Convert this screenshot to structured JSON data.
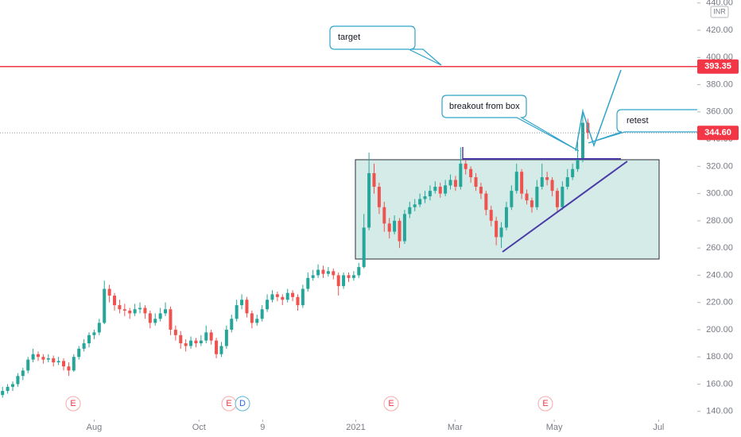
{
  "chart_data": {
    "type": "candlestick",
    "currency": "INR",
    "up_color": "#26a69a",
    "down_color": "#ef5350",
    "xlim": [
      -0.5,
      136.5
    ],
    "xticks": [
      {
        "value": 18,
        "label": "Aug"
      },
      {
        "value": 38.6,
        "label": "Oct"
      },
      {
        "value": 51.1,
        "label": "9"
      },
      {
        "value": 69.4,
        "label": "2021"
      },
      {
        "value": 88.9,
        "label": "Mar"
      },
      {
        "value": 108.4,
        "label": "May"
      },
      {
        "value": 128.9,
        "label": "Jul"
      }
    ],
    "ylim": [
      134,
      442.2
    ],
    "yticks": [
      {
        "value": 140,
        "label": "140.00"
      },
      {
        "value": 160,
        "label": "160.00"
      },
      {
        "value": 180,
        "label": "180.00"
      },
      {
        "value": 200,
        "label": "200.00"
      },
      {
        "value": 220,
        "label": "220.00"
      },
      {
        "value": 240,
        "label": "240.00"
      },
      {
        "value": 260,
        "label": "260.00"
      },
      {
        "value": 280,
        "label": "280.00"
      },
      {
        "value": 300,
        "label": "300.00"
      },
      {
        "value": 320,
        "label": "320.00"
      },
      {
        "value": 340,
        "label": "340.00"
      },
      {
        "value": 360,
        "label": "360.00"
      },
      {
        "value": 380,
        "label": "380.00"
      },
      {
        "value": 400,
        "label": "400.00"
      },
      {
        "value": 420,
        "label": "420.00"
      },
      {
        "value": 440,
        "label": "440.00"
      }
    ],
    "price_line": {
      "value": 393.35,
      "label": "393.35",
      "color": "#f23645"
    },
    "last_price": {
      "value": 344.6,
      "label": "344.60",
      "color": "#f23645"
    },
    "annotations": [
      "target",
      "breakout from box",
      "retest"
    ],
    "events": [
      "E",
      "E",
      "D",
      "E",
      "E"
    ],
    "candles": [
      [
        152,
        158,
        150,
        155
      ],
      [
        155,
        160,
        153,
        158
      ],
      [
        158,
        162,
        155,
        160
      ],
      [
        160,
        168,
        158,
        166
      ],
      [
        166,
        172,
        163,
        170
      ],
      [
        170,
        180,
        168,
        178
      ],
      [
        178,
        186,
        176,
        182
      ],
      [
        182,
        184,
        177,
        180
      ],
      [
        180,
        182,
        175,
        178
      ],
      [
        178,
        182,
        176,
        179
      ],
      [
        179,
        181,
        173,
        176
      ],
      [
        176,
        180,
        174,
        177
      ],
      [
        177,
        179,
        170,
        173
      ],
      [
        173,
        176,
        166,
        170
      ],
      [
        170,
        182,
        169,
        180
      ],
      [
        180,
        188,
        178,
        186
      ],
      [
        186,
        193,
        184,
        190
      ],
      [
        190,
        198,
        187,
        196
      ],
      [
        196,
        200,
        193,
        198
      ],
      [
        198,
        208,
        196,
        205
      ],
      [
        205,
        236,
        204,
        230
      ],
      [
        230,
        233,
        220,
        225
      ],
      [
        225,
        227,
        214,
        218
      ],
      [
        218,
        222,
        212,
        215
      ],
      [
        215,
        219,
        210,
        214
      ],
      [
        214,
        216,
        208,
        212
      ],
      [
        212,
        219,
        210,
        215
      ],
      [
        215,
        220,
        212,
        216
      ],
      [
        216,
        218,
        208,
        212
      ],
      [
        212,
        214,
        201,
        205
      ],
      [
        205,
        212,
        203,
        208
      ],
      [
        208,
        216,
        206,
        212
      ],
      [
        212,
        220,
        210,
        215
      ],
      [
        215,
        217,
        196,
        200
      ],
      [
        200,
        203,
        192,
        196
      ],
      [
        196,
        199,
        186,
        190
      ],
      [
        190,
        193,
        184,
        188
      ],
      [
        188,
        195,
        186,
        192
      ],
      [
        192,
        194,
        187,
        190
      ],
      [
        190,
        196,
        188,
        192
      ],
      [
        192,
        203,
        190,
        198
      ],
      [
        198,
        200,
        189,
        192
      ],
      [
        192,
        194,
        179,
        182
      ],
      [
        182,
        191,
        180,
        188
      ],
      [
        188,
        203,
        186,
        200
      ],
      [
        200,
        211,
        198,
        208
      ],
      [
        208,
        222,
        206,
        218
      ],
      [
        218,
        226,
        215,
        222
      ],
      [
        222,
        224,
        209,
        212
      ],
      [
        212,
        214,
        201,
        205
      ],
      [
        205,
        211,
        203,
        208
      ],
      [
        208,
        218,
        206,
        215
      ],
      [
        215,
        226,
        213,
        222
      ],
      [
        222,
        229,
        220,
        226
      ],
      [
        226,
        228,
        221,
        224
      ],
      [
        224,
        226,
        218,
        222
      ],
      [
        222,
        230,
        220,
        227
      ],
      [
        227,
        229,
        221,
        224
      ],
      [
        224,
        226,
        214,
        218
      ],
      [
        218,
        233,
        216,
        230
      ],
      [
        230,
        242,
        228,
        238
      ],
      [
        238,
        244,
        236,
        240
      ],
      [
        240,
        248,
        238,
        244
      ],
      [
        244,
        247,
        238,
        241
      ],
      [
        241,
        246,
        239,
        243
      ],
      [
        243,
        245,
        237,
        240
      ],
      [
        240,
        242,
        225,
        232
      ],
      [
        232,
        242,
        230,
        240
      ],
      [
        240,
        242,
        235,
        238
      ],
      [
        238,
        243,
        236,
        240
      ],
      [
        240,
        249,
        238,
        246
      ],
      [
        246,
        285,
        245,
        275
      ],
      [
        275,
        330,
        273,
        315
      ],
      [
        315,
        322,
        300,
        305
      ],
      [
        305,
        308,
        285,
        290
      ],
      [
        290,
        294,
        272,
        278
      ],
      [
        278,
        282,
        267,
        272
      ],
      [
        272,
        284,
        270,
        280
      ],
      [
        280,
        282,
        260,
        265
      ],
      [
        265,
        288,
        263,
        285
      ],
      [
        285,
        294,
        282,
        290
      ],
      [
        290,
        296,
        287,
        292
      ],
      [
        292,
        300,
        290,
        296
      ],
      [
        296,
        302,
        293,
        298
      ],
      [
        298,
        306,
        295,
        302
      ],
      [
        302,
        309,
        300,
        305
      ],
      [
        305,
        308,
        297,
        300
      ],
      [
        300,
        310,
        298,
        306
      ],
      [
        306,
        314,
        303,
        310
      ],
      [
        310,
        313,
        302,
        305
      ],
      [
        305,
        334,
        303,
        322
      ],
      [
        322,
        325,
        314,
        318
      ],
      [
        318,
        320,
        308,
        312
      ],
      [
        312,
        315,
        302,
        305
      ],
      [
        305,
        308,
        296,
        300
      ],
      [
        300,
        302,
        284,
        288
      ],
      [
        288,
        291,
        276,
        280
      ],
      [
        280,
        283,
        262,
        268
      ],
      [
        268,
        279,
        260,
        275
      ],
      [
        275,
        294,
        273,
        290
      ],
      [
        290,
        306,
        288,
        302
      ],
      [
        302,
        322,
        300,
        316
      ],
      [
        316,
        318,
        296,
        300
      ],
      [
        300,
        303,
        292,
        295
      ],
      [
        295,
        297,
        286,
        290
      ],
      [
        290,
        310,
        288,
        305
      ],
      [
        305,
        322,
        303,
        312
      ],
      [
        312,
        316,
        306,
        310
      ],
      [
        310,
        312,
        298,
        302
      ],
      [
        302,
        304,
        286,
        290
      ],
      [
        290,
        309,
        288,
        305
      ],
      [
        305,
        318,
        303,
        312
      ],
      [
        312,
        322,
        310,
        318
      ],
      [
        318,
        338,
        316,
        325
      ],
      [
        325,
        362,
        323,
        352
      ],
      [
        352,
        355,
        340,
        344.6
      ]
    ]
  }
}
